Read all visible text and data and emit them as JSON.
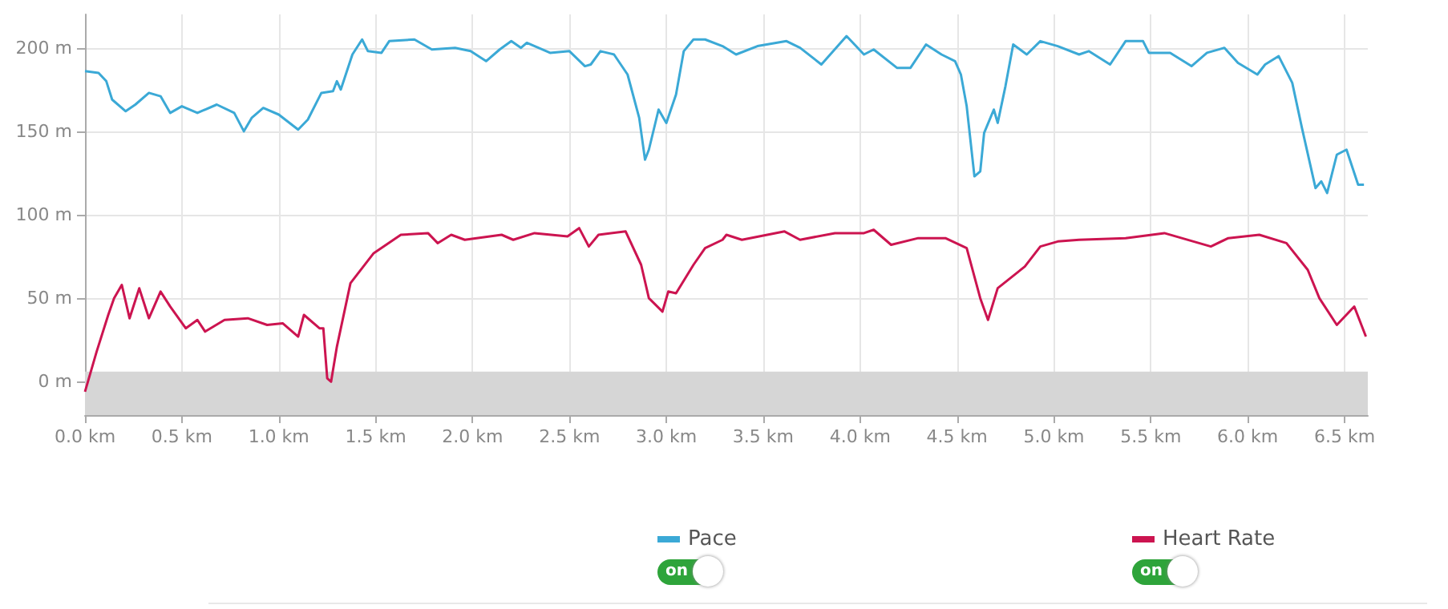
{
  "chart_data": {
    "type": "line",
    "xlim": [
      0,
      6.62
    ],
    "ylim": [
      -20,
      220
    ],
    "xticks": [
      {
        "value": 0,
        "label": "0.0 km"
      },
      {
        "value": 0.5,
        "label": "0.5 km"
      },
      {
        "value": 1,
        "label": "1.0 km"
      },
      {
        "value": 1.5,
        "label": "1.5 km"
      },
      {
        "value": 2,
        "label": "2.0 km"
      },
      {
        "value": 2.5,
        "label": "2.5 km"
      },
      {
        "value": 3,
        "label": "3.0 km"
      },
      {
        "value": 3.5,
        "label": "3.5 km"
      },
      {
        "value": 4,
        "label": "4.0 km"
      },
      {
        "value": 4.5,
        "label": "4.5 km"
      },
      {
        "value": 5,
        "label": "5.0 km"
      },
      {
        "value": 5.5,
        "label": "5.5 km"
      },
      {
        "value": 6,
        "label": "6.0 km"
      },
      {
        "value": 6.5,
        "label": "6.5 km"
      }
    ],
    "yticks": [
      {
        "value": 0,
        "label": "0 m"
      },
      {
        "value": 50,
        "label": "50 m"
      },
      {
        "value": 100,
        "label": "100 m"
      },
      {
        "value": 150,
        "label": "150 m"
      },
      {
        "value": 200,
        "label": "200 m"
      }
    ],
    "grid": true,
    "legend": "bottom",
    "annotations": [
      "on",
      "on"
    ],
    "bands": [
      {
        "axis": "y",
        "from": -20,
        "to": 6,
        "color": "#d6d6d6"
      }
    ],
    "series": [
      {
        "name": "Pace",
        "color": "#3ba9d6",
        "x": [
          0,
          0.07,
          0.11,
          0.14,
          0.21,
          0.26,
          0.33,
          0.39,
          0.44,
          0.5,
          0.58,
          0.68,
          0.77,
          0.82,
          0.86,
          0.92,
          1,
          1.1,
          1.15,
          1.22,
          1.28,
          1.3,
          1.32,
          1.38,
          1.43,
          1.46,
          1.53,
          1.57,
          1.7,
          1.79,
          1.91,
          1.99,
          2.07,
          2.14,
          2.2,
          2.25,
          2.28,
          2.4,
          2.5,
          2.58,
          2.61,
          2.66,
          2.73,
          2.8,
          2.86,
          2.89,
          2.91,
          2.96,
          3,
          3.05,
          3.09,
          3.14,
          3.2,
          3.29,
          3.36,
          3.47,
          3.62,
          3.69,
          3.8,
          3.93,
          4.02,
          4.07,
          4.19,
          4.26,
          4.34,
          4.42,
          4.49,
          4.52,
          4.55,
          4.59,
          4.62,
          4.64,
          4.69,
          4.71,
          4.75,
          4.79,
          4.86,
          4.93,
          5.02,
          5.13,
          5.18,
          5.29,
          5.37,
          5.46,
          5.49,
          5.6,
          5.71,
          5.79,
          5.88,
          5.95,
          6.05,
          6.09,
          6.16,
          6.23,
          6.28,
          6.35,
          6.38,
          6.41,
          6.46,
          6.51,
          6.57,
          6.6
        ],
        "values": [
          186,
          185,
          180,
          169,
          162,
          166,
          173,
          171,
          161,
          165,
          161,
          166,
          161,
          150,
          158,
          164,
          160,
          151,
          157,
          173,
          174,
          180,
          175,
          196,
          205,
          198,
          197,
          204,
          205,
          199,
          200,
          198,
          192,
          199,
          204,
          200,
          203,
          197,
          198,
          189,
          190,
          198,
          196,
          184,
          158,
          133,
          139,
          163,
          155,
          172,
          198,
          205,
          205,
          201,
          196,
          201,
          204,
          200,
          190,
          207,
          196,
          199,
          188,
          188,
          202,
          196,
          192,
          184,
          165,
          123,
          126,
          149,
          163,
          155,
          177,
          202,
          196,
          204,
          201,
          196,
          198,
          190,
          204,
          204,
          197,
          197,
          189,
          197,
          200,
          191,
          184,
          190,
          195,
          179,
          152,
          116,
          120,
          113,
          136,
          139,
          118,
          118
        ]
      },
      {
        "name": "Heart Rate",
        "color": "#cc1450",
        "x": [
          0,
          0.06,
          0.12,
          0.15,
          0.19,
          0.23,
          0.28,
          0.33,
          0.39,
          0.44,
          0.52,
          0.58,
          0.62,
          0.72,
          0.84,
          0.94,
          1.02,
          1.1,
          1.13,
          1.21,
          1.23,
          1.25,
          1.27,
          1.3,
          1.37,
          1.49,
          1.63,
          1.77,
          1.82,
          1.89,
          1.96,
          2.15,
          2.21,
          2.32,
          2.49,
          2.55,
          2.6,
          2.65,
          2.79,
          2.87,
          2.91,
          2.98,
          3.01,
          3.05,
          3.14,
          3.2,
          3.29,
          3.31,
          3.39,
          3.61,
          3.69,
          3.87,
          4.02,
          4.07,
          4.16,
          4.3,
          4.44,
          4.55,
          4.62,
          4.66,
          4.71,
          4.85,
          4.93,
          5.02,
          5.13,
          5.37,
          5.57,
          5.81,
          5.9,
          6.06,
          6.2,
          6.31,
          6.37,
          6.46,
          6.55,
          6.61
        ],
        "values": [
          -6,
          18,
          40,
          50,
          58,
          38,
          56,
          38,
          54,
          45,
          32,
          37,
          30,
          37,
          38,
          34,
          35,
          27,
          40,
          32,
          32,
          2,
          0,
          21,
          59,
          77,
          88,
          89,
          83,
          88,
          85,
          88,
          85,
          89,
          87,
          92,
          81,
          88,
          90,
          70,
          50,
          42,
          54,
          53,
          70,
          80,
          85,
          88,
          85,
          90,
          85,
          89,
          89,
          91,
          82,
          86,
          86,
          80,
          50,
          37,
          56,
          69,
          81,
          84,
          85,
          86,
          89,
          81,
          86,
          88,
          83,
          67,
          50,
          34,
          45,
          27
        ]
      }
    ]
  }
}
